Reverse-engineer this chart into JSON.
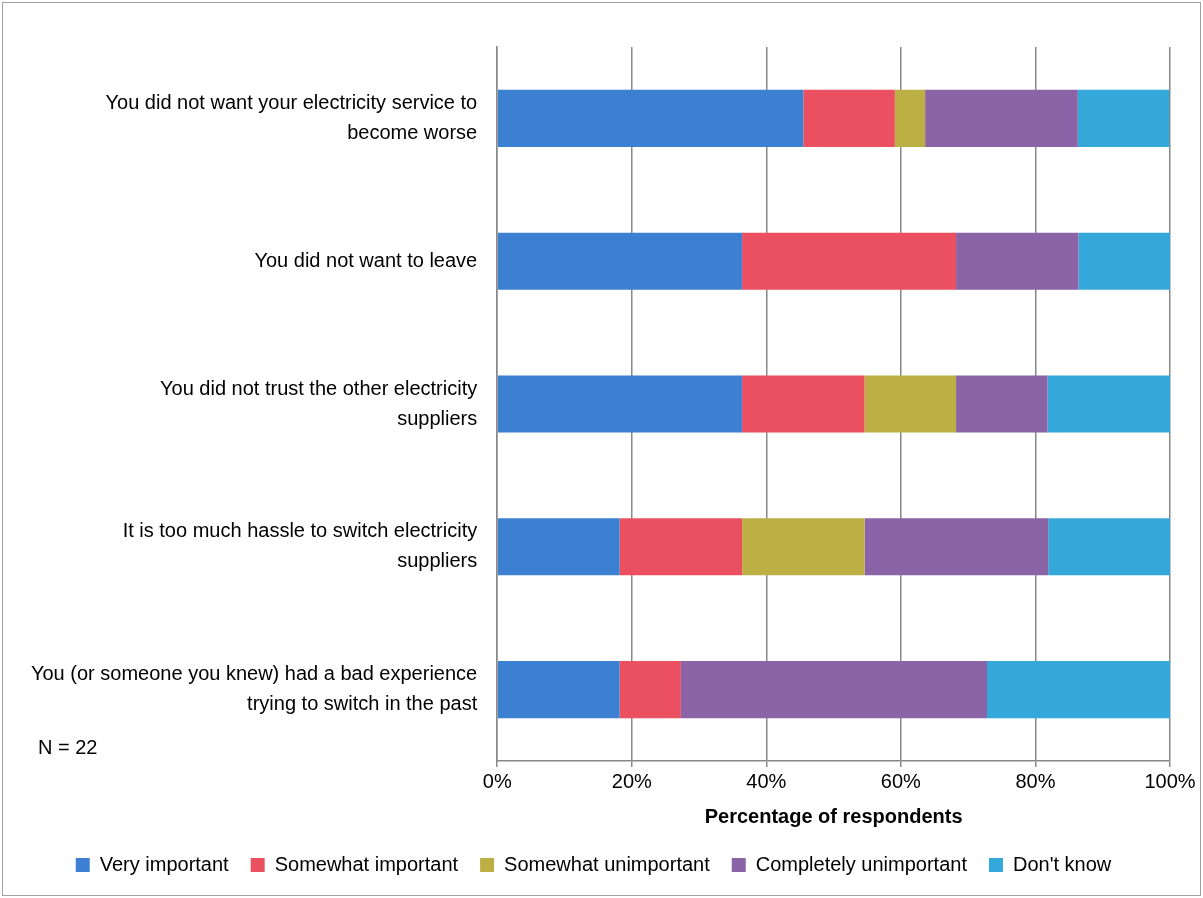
{
  "chart_data": {
    "type": "bar",
    "orientation": "horizontal",
    "stacked": true,
    "xlabel": "Percentage of respondents",
    "categories": [
      "You did not want your electricity service to become worse",
      "You did not want to leave",
      "You did not trust the other electricity suppliers",
      "It is too much hassle to switch electricity suppliers",
      "You (or someone you knew) had a bad experience trying to switch in the past"
    ],
    "series": [
      {
        "name": "Very important",
        "color": "#3d7fd0",
        "values": [
          45.5,
          36.4,
          36.4,
          18.2,
          18.2
        ]
      },
      {
        "name": "Somewhat important",
        "color": "#ea5060",
        "values": [
          13.6,
          31.8,
          18.2,
          18.2,
          9.1
        ]
      },
      {
        "name": "Somewhat unimportant",
        "color": "#bcb045",
        "values": [
          4.5,
          0,
          13.6,
          18.2,
          0
        ]
      },
      {
        "name": "Completely unimportant",
        "color": "#8a64a6",
        "values": [
          22.7,
          18.2,
          13.6,
          27.3,
          45.5
        ]
      },
      {
        "name": "Don't know",
        "color": "#34a8d8",
        "values": [
          13.6,
          13.6,
          18.2,
          18.2,
          27.3
        ]
      }
    ],
    "xlim": [
      0,
      100
    ],
    "xticks": [
      {
        "value": 0,
        "label": "0%"
      },
      {
        "value": 20,
        "label": "20%"
      },
      {
        "value": 40,
        "label": "40%"
      },
      {
        "value": 60,
        "label": "60%"
      },
      {
        "value": 80,
        "label": "80%"
      },
      {
        "value": 100,
        "label": "100%"
      }
    ],
    "grid": "x",
    "legend": "bottom",
    "annotations": [
      "N = 22"
    ]
  }
}
